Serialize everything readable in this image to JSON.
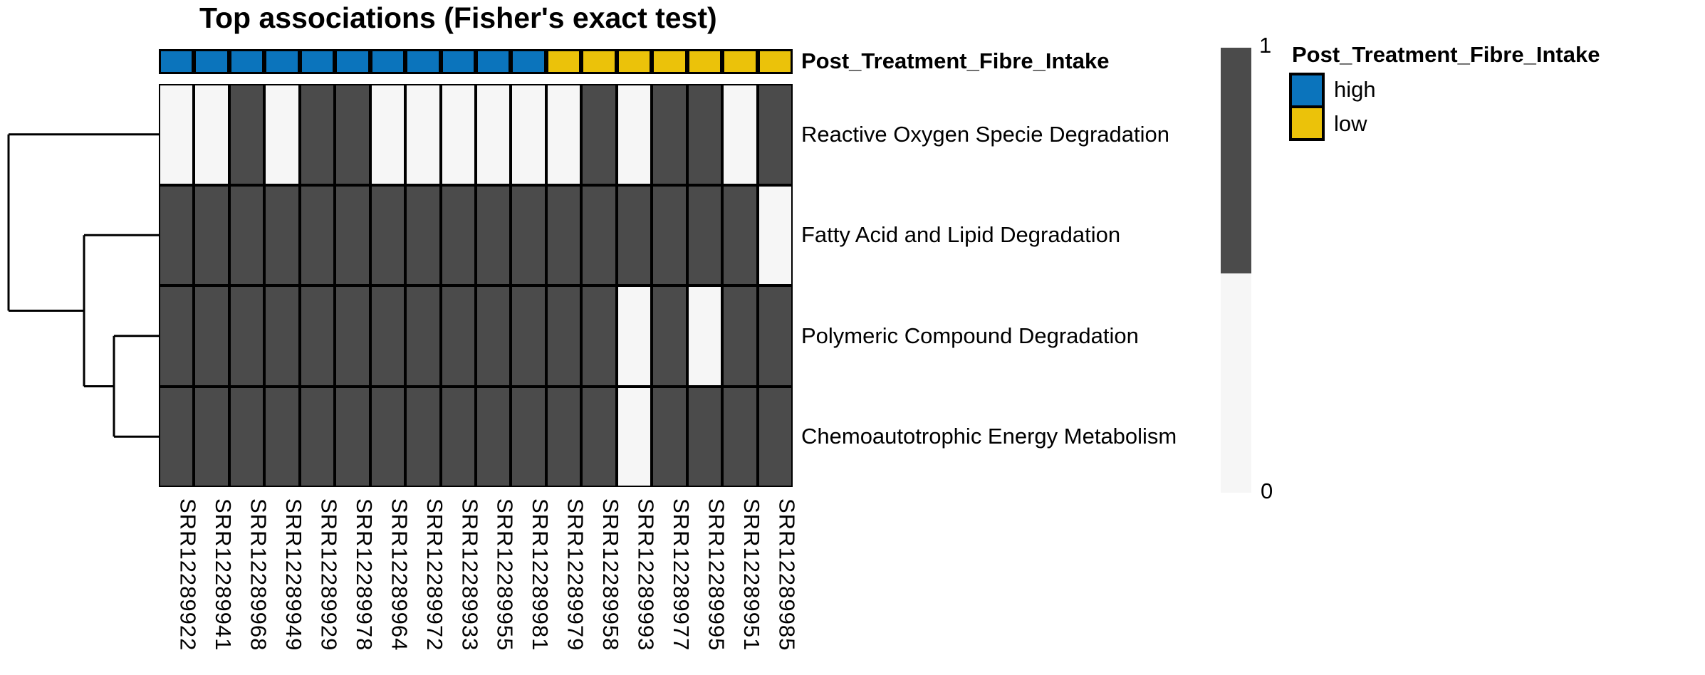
{
  "chart_data": {
    "type": "heatmap",
    "title": "Top associations (Fisher's exact test)",
    "rows": [
      "Reactive Oxygen Specie Degradation",
      "Fatty Acid and Lipid Degradation",
      "Polymeric Compound Degradation",
      "Chemoautotrophic Energy Metabolism"
    ],
    "columns": [
      "SRR12289922",
      "SRR12289941",
      "SRR12289968",
      "SRR12289949",
      "SRR12289929",
      "SRR12289978",
      "SRR12289964",
      "SRR12289972",
      "SRR12289933",
      "SRR12289955",
      "SRR12289981",
      "SRR12289979",
      "SRR12289958",
      "SRR12289993",
      "SRR12289977",
      "SRR12289995",
      "SRR12289951",
      "SRR12289985"
    ],
    "values": [
      [
        0,
        0,
        1,
        0,
        1,
        1,
        0,
        0,
        0,
        0,
        0,
        0,
        1,
        0,
        1,
        1,
        0,
        1
      ],
      [
        1,
        1,
        1,
        1,
        1,
        1,
        1,
        1,
        1,
        1,
        1,
        1,
        1,
        1,
        1,
        1,
        1,
        0
      ],
      [
        1,
        1,
        1,
        1,
        1,
        1,
        1,
        1,
        1,
        1,
        1,
        1,
        1,
        0,
        1,
        0,
        1,
        1
      ],
      [
        1,
        1,
        1,
        1,
        1,
        1,
        1,
        1,
        1,
        1,
        1,
        1,
        1,
        0,
        1,
        1,
        1,
        1
      ]
    ],
    "value_colors": {
      "present": "#4B4B4B",
      "absent": "#F6F6F6"
    },
    "value_legend": {
      "max_label": "1",
      "min_label": "0"
    },
    "column_annotation": {
      "title": "Post_Treatment_Fibre_Intake",
      "values": [
        "high",
        "high",
        "high",
        "high",
        "high",
        "high",
        "high",
        "high",
        "high",
        "high",
        "high",
        "low",
        "low",
        "low",
        "low",
        "low",
        "low",
        "low"
      ],
      "levels": [
        {
          "label": "high",
          "color": "#0B74BC"
        },
        {
          "label": "low",
          "color": "#EBC20A"
        }
      ]
    },
    "row_dendrogram_merges": [
      [
        "Polymeric Compound Degradation",
        "Chemoautotrophic Energy Metabolism"
      ],
      [
        "Fatty Acid and Lipid Degradation",
        "(Polymeric Compound Degradation + Chemoautotrophic Energy Metabolism)"
      ],
      [
        "Reactive Oxygen Specie Degradation",
        "(all other rows)"
      ]
    ],
    "legend_position": "right",
    "grid": "black cell borders"
  }
}
